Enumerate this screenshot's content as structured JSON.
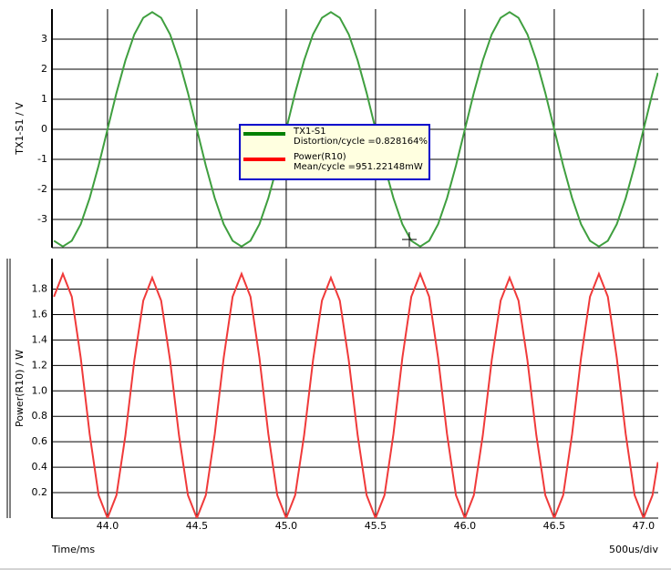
{
  "chart_data": [
    {
      "type": "line",
      "ylabel": "TX1-S1 / V",
      "xlim": [
        43.689,
        47.082
      ],
      "xticks": [
        44,
        44.5,
        45,
        45.5,
        46,
        46.5,
        47
      ],
      "ylim": [
        -3.94,
        4.0
      ],
      "yticks": [
        -3,
        -2,
        -1,
        0,
        1,
        2,
        3
      ],
      "grid": true,
      "x": [
        43.7,
        43.75,
        43.8,
        43.85,
        43.9,
        43.95,
        44,
        44.05,
        44.1,
        44.15,
        44.2,
        44.25,
        44.3,
        44.35,
        44.4,
        44.45,
        44.5,
        44.55,
        44.6,
        44.65,
        44.7,
        44.75,
        44.8,
        44.85,
        44.9,
        44.95,
        45,
        45.05,
        45.1,
        45.15,
        45.2,
        45.25,
        45.3,
        45.35,
        45.4,
        45.45,
        45.5,
        45.55,
        45.6,
        45.65,
        45.7,
        45.75,
        45.8,
        45.85,
        45.9,
        45.95,
        46,
        46.05,
        46.1,
        46.15,
        46.2,
        46.25,
        46.3,
        46.35,
        46.4,
        46.45,
        46.5,
        46.55,
        46.6,
        46.65,
        46.7,
        46.75,
        46.8,
        46.85,
        46.9,
        46.95,
        47,
        47.05,
        47.08
      ],
      "series": [
        {
          "name": "TX1-S1",
          "note": "Distortion/cycle =0.828164%",
          "color": "#3f9f3f",
          "values": [
            -3.71,
            -3.9,
            -3.71,
            -3.16,
            -2.29,
            -1.21,
            0,
            1.21,
            2.29,
            3.16,
            3.71,
            3.9,
            3.71,
            3.16,
            2.29,
            1.21,
            0,
            -1.21,
            -2.29,
            -3.16,
            -3.71,
            -3.9,
            -3.71,
            -3.16,
            -2.29,
            -1.21,
            0,
            1.21,
            2.29,
            3.16,
            3.71,
            3.9,
            3.71,
            3.16,
            2.29,
            1.21,
            0,
            -1.21,
            -2.29,
            -3.16,
            -3.71,
            -3.9,
            -3.71,
            -3.16,
            -2.29,
            -1.21,
            0,
            1.21,
            2.29,
            3.16,
            3.71,
            3.9,
            3.71,
            3.16,
            2.29,
            1.21,
            0,
            -1.21,
            -2.29,
            -3.16,
            -3.71,
            -3.9,
            -3.71,
            -3.16,
            -2.29,
            -1.21,
            0,
            1.21,
            1.88
          ]
        }
      ]
    },
    {
      "type": "line",
      "ylabel": "Power(R10) / W",
      "xlabel": "Time/ms",
      "xscale_label": "500us/div",
      "xlim": [
        43.689,
        47.082
      ],
      "xticks": [
        {
          "value": 44,
          "label": "44.0"
        },
        {
          "value": 44.5,
          "label": "44.5"
        },
        {
          "value": 45,
          "label": "45.0"
        },
        {
          "value": 45.5,
          "label": "45.5"
        },
        {
          "value": 46,
          "label": "46.0"
        },
        {
          "value": 46.5,
          "label": "46.5"
        },
        {
          "value": 47,
          "label": "47.0"
        }
      ],
      "ylim": [
        0,
        2.04
      ],
      "yticks": [
        0.2,
        0.4,
        0.6,
        0.8,
        {
          "value": 1,
          "label": "1.0"
        },
        1.2,
        1.4,
        1.6,
        1.8
      ],
      "grid": true,
      "x": [
        43.7,
        43.75,
        43.8,
        43.85,
        43.9,
        43.95,
        44,
        44.05,
        44.1,
        44.15,
        44.2,
        44.25,
        44.3,
        44.35,
        44.4,
        44.45,
        44.5,
        44.55,
        44.6,
        44.65,
        44.7,
        44.75,
        44.8,
        44.85,
        44.9,
        44.95,
        45,
        45.05,
        45.1,
        45.15,
        45.2,
        45.25,
        45.3,
        45.35,
        45.4,
        45.45,
        45.5,
        45.55,
        45.6,
        45.65,
        45.7,
        45.75,
        45.8,
        45.85,
        45.9,
        45.95,
        46,
        46.05,
        46.1,
        46.15,
        46.2,
        46.25,
        46.3,
        46.35,
        46.4,
        46.45,
        46.5,
        46.55,
        46.6,
        46.65,
        46.7,
        46.75,
        46.8,
        46.85,
        46.9,
        46.95,
        47,
        47.05,
        47.08
      ],
      "series": [
        {
          "name": "Power(R10)",
          "note": "Mean/cycle =951.22148mW",
          "color": "#f03a3a",
          "values": [
            1.74,
            1.92,
            1.74,
            1.26,
            0.66,
            0.18,
            0,
            0.18,
            0.65,
            1.24,
            1.71,
            1.89,
            1.71,
            1.24,
            0.65,
            0.18,
            0,
            0.18,
            0.66,
            1.26,
            1.74,
            1.92,
            1.74,
            1.26,
            0.66,
            0.18,
            0,
            0.18,
            0.65,
            1.24,
            1.71,
            1.89,
            1.71,
            1.24,
            0.65,
            0.18,
            0,
            0.18,
            0.66,
            1.26,
            1.74,
            1.92,
            1.74,
            1.26,
            0.66,
            0.18,
            0,
            0.18,
            0.65,
            1.24,
            1.71,
            1.89,
            1.71,
            1.24,
            0.65,
            0.18,
            0,
            0.18,
            0.66,
            1.26,
            1.74,
            1.92,
            1.74,
            1.26,
            0.66,
            0.18,
            0,
            0.18,
            0.44
          ]
        }
      ]
    }
  ]
}
